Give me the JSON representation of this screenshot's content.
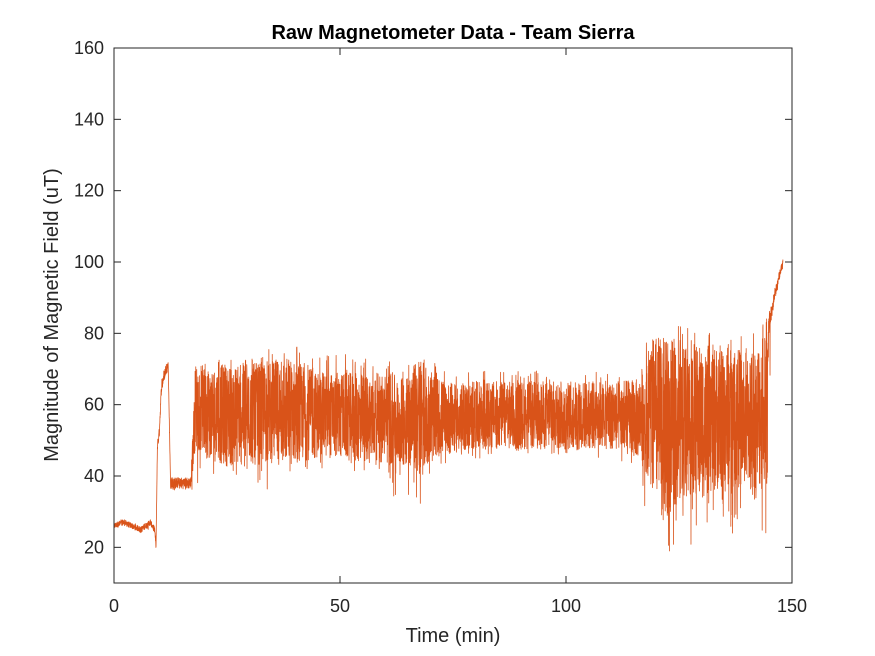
{
  "chart_data": {
    "type": "line",
    "title": "Raw Magnetometer Data - Team Sierra",
    "xlabel": "Time (min)",
    "ylabel": "Magnitude of Magnetic Field (uT)",
    "xlim": [
      0,
      150
    ],
    "ylim": [
      10,
      160
    ],
    "xticks": [
      0,
      50,
      100,
      150
    ],
    "yticks": [
      20,
      40,
      60,
      80,
      100,
      120,
      140,
      160
    ],
    "grid": false,
    "line_color": "#D95319",
    "series": [
      {
        "x": [
          0,
          2,
          4,
          6,
          8,
          9,
          9.3,
          9.6,
          10,
          10.5,
          11,
          11.5,
          12,
          12.5,
          13,
          15,
          17,
          18,
          20,
          25,
          30,
          35,
          40,
          45,
          50,
          55,
          60,
          63,
          65,
          68,
          70,
          75,
          80,
          90,
          100,
          110,
          116,
          118,
          120,
          122,
          125,
          128,
          130,
          135,
          140,
          144,
          145,
          145.5,
          146,
          147,
          148
        ],
        "y": [
          26,
          27,
          26,
          25,
          27,
          25,
          20,
          48,
          52,
          65,
          68,
          70,
          71,
          38,
          38,
          38,
          38,
          60,
          58,
          57,
          57,
          58,
          58,
          57,
          57,
          56,
          57,
          55,
          56,
          57,
          57,
          56,
          57,
          57,
          57,
          57,
          56,
          58,
          56,
          52,
          56,
          56,
          55,
          57,
          56,
          58,
          82,
          85,
          90,
          95,
          100
        ],
        "min": [
          25,
          26,
          25,
          24,
          25,
          24,
          19,
          47,
          50,
          63,
          66,
          68,
          70,
          36,
          36,
          36,
          36,
          35,
          42,
          38,
          40,
          35,
          40,
          42,
          42,
          40,
          42,
          25,
          35,
          30,
          42,
          44,
          45,
          45,
          45,
          45,
          42,
          27,
          18,
          12,
          18,
          20,
          26,
          22,
          25,
          18,
          25,
          80,
          86,
          92,
          98
        ],
        "max": [
          27,
          28,
          27,
          26,
          28,
          26,
          21,
          50,
          55,
          67,
          70,
          72,
          72,
          40,
          40,
          40,
          40,
          75,
          74,
          75,
          75,
          76,
          78,
          74,
          75,
          73,
          75,
          70,
          72,
          79,
          72,
          70,
          70,
          70,
          69,
          70,
          70,
          80,
          86,
          85,
          84,
          83,
          82,
          82,
          80,
          86,
          88,
          88,
          92,
          97,
          101
        ]
      }
    ]
  }
}
